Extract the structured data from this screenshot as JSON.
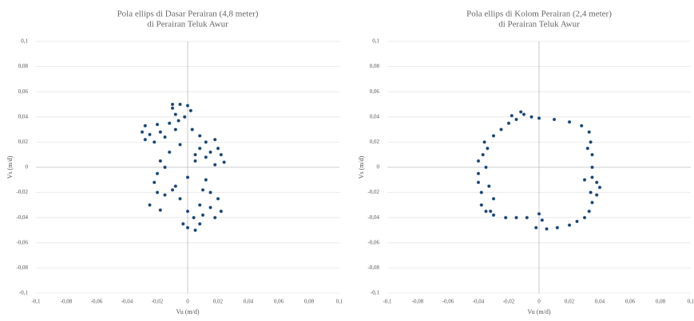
{
  "chart_data": [
    {
      "type": "scatter",
      "title": "Pola ellips di Dasar Perairan  (4,8 meter)",
      "subtitle": "di Perairan Teluk Awur",
      "x_label": "Vu (m/d)",
      "y_label": "Vs (m/d)",
      "color": "#1f3f66",
      "grid": true,
      "xlim": [
        -0.1,
        0.1
      ],
      "ylim": [
        -0.1,
        0.1
      ],
      "xticks": [
        {
          "value": -0.1,
          "label": "-0,1"
        },
        {
          "value": -0.08,
          "label": "-0,08"
        },
        {
          "value": -0.06,
          "label": "-0,06"
        },
        {
          "value": -0.04,
          "label": "-0,04"
        },
        {
          "value": -0.02,
          "label": "-0,02"
        },
        0,
        {
          "value": 0.02,
          "label": "0,02"
        },
        {
          "value": 0.04,
          "label": "0,04"
        },
        {
          "value": 0.06,
          "label": "0,06"
        },
        {
          "value": 0.08,
          "label": "0,08"
        },
        {
          "value": 0.1,
          "label": "0,1"
        }
      ],
      "yticks": [
        {
          "value": 0.1,
          "label": "0,1"
        },
        {
          "value": 0.08,
          "label": "0,08"
        },
        {
          "value": 0.06,
          "label": "0,06"
        },
        {
          "value": 0.04,
          "label": "0,04"
        },
        {
          "value": 0.02,
          "label": "0,02"
        },
        0,
        {
          "value": -0.02,
          "label": "-0,02"
        },
        {
          "value": -0.04,
          "label": "-0,04"
        },
        {
          "value": -0.06,
          "label": "-0,06"
        },
        {
          "value": -0.08,
          "label": "-0,08"
        },
        {
          "value": -0.1,
          "label": "-0,1"
        }
      ],
      "x": [
        -0.01,
        -0.005,
        0,
        0.002,
        -0.002,
        -0.008,
        -0.01,
        -0.006,
        -0.012,
        -0.02,
        -0.028,
        -0.03,
        -0.025,
        -0.018,
        -0.028,
        -0.022,
        -0.015,
        -0.008,
        0.003,
        0.008,
        0.012,
        0.018,
        0.02,
        0.015,
        0.022,
        0.024,
        0.018,
        0.012,
        0.008,
        0.005,
        -0.005,
        -0.012,
        -0.018,
        -0.02,
        -0.022,
        -0.02,
        -0.015,
        -0.01,
        -0.025,
        -0.018,
        -0.005,
        0,
        -0.003,
        0,
        0.005,
        0.004,
        0.008,
        0.01,
        0.015,
        0.02,
        0.022,
        0.018,
        0.015,
        0.01,
        0.008,
        0.005,
        0,
        -0.008,
        0.012,
        -0.015
      ],
      "values": [
        0.05,
        0.05,
        0.049,
        0.045,
        0.04,
        0.042,
        0.047,
        0.037,
        0.035,
        0.034,
        0.033,
        0.028,
        0.026,
        0.028,
        0.022,
        0.02,
        0.024,
        0.03,
        0.03,
        0.025,
        0.02,
        0.022,
        0.015,
        0.012,
        0.01,
        0.004,
        0.002,
        0.008,
        0.015,
        0.01,
        0.018,
        0.012,
        0.005,
        -0.005,
        -0.012,
        -0.02,
        -0.022,
        -0.018,
        -0.03,
        -0.034,
        -0.025,
        -0.035,
        -0.045,
        -0.048,
        -0.05,
        -0.04,
        -0.03,
        -0.018,
        -0.02,
        -0.025,
        -0.035,
        -0.04,
        -0.032,
        -0.038,
        -0.045,
        0.005,
        -0.008,
        -0.015,
        -0.01,
        0
      ]
    },
    {
      "type": "scatter",
      "title": "Pola ellips di Kolom Perairan (2,4 meter)",
      "subtitle": "di Perairan Teluk Awur",
      "x_label": "Vu (m/d)",
      "y_label": "Vs (m/d)",
      "color": "#1f3f66",
      "grid": true,
      "xlim": [
        -0.1,
        0.1
      ],
      "ylim": [
        -0.1,
        0.1
      ],
      "xticks": [
        {
          "value": -0.1,
          "label": "-0,1"
        },
        {
          "value": -0.08,
          "label": "-0,08"
        },
        {
          "value": -0.06,
          "label": "-0,06"
        },
        {
          "value": -0.04,
          "label": "-0,04"
        },
        {
          "value": -0.02,
          "label": "-0,02"
        },
        0,
        {
          "value": 0.02,
          "label": "0,02"
        },
        {
          "value": 0.04,
          "label": "0,04"
        },
        {
          "value": 0.06,
          "label": "0,06"
        },
        {
          "value": 0.08,
          "label": "0,08"
        },
        {
          "value": 0.1,
          "label": "0,1"
        }
      ],
      "yticks": [
        {
          "value": 0.1,
          "label": "0,1"
        },
        {
          "value": 0.08,
          "label": "0,08"
        },
        {
          "value": 0.06,
          "label": "0,06"
        },
        {
          "value": 0.04,
          "label": "0,04"
        },
        {
          "value": 0.02,
          "label": "0,02"
        },
        0,
        {
          "value": -0.02,
          "label": "-0,02"
        },
        {
          "value": -0.04,
          "label": "-0,04"
        },
        {
          "value": -0.06,
          "label": "-0,06"
        },
        {
          "value": -0.08,
          "label": "-0,08"
        },
        {
          "value": -0.1,
          "label": "-0,1"
        }
      ],
      "x": [
        -0.012,
        -0.018,
        -0.005,
        0,
        0.01,
        0.02,
        0.028,
        0.033,
        0.034,
        0.035,
        0.035,
        0.035,
        0.038,
        0.04,
        0.038,
        0.034,
        0.035,
        0.033,
        0.03,
        0.025,
        0.02,
        0.012,
        0.005,
        -0.002,
        0.002,
        0,
        -0.008,
        -0.015,
        -0.022,
        -0.03,
        -0.035,
        -0.038,
        -0.038,
        -0.033,
        -0.03,
        -0.032,
        -0.04,
        -0.04,
        -0.035,
        -0.04,
        -0.037,
        -0.034,
        -0.036,
        -0.03,
        -0.025,
        -0.02,
        -0.015,
        -0.01,
        0.03,
        0.032
      ],
      "values": [
        0.044,
        0.041,
        0.04,
        0.039,
        0.038,
        0.036,
        0.033,
        0.028,
        0.02,
        0.01,
        0,
        -0.008,
        -0.012,
        -0.016,
        -0.022,
        -0.02,
        -0.028,
        -0.035,
        -0.04,
        -0.043,
        -0.046,
        -0.048,
        -0.049,
        -0.048,
        -0.042,
        -0.037,
        -0.04,
        -0.04,
        -0.04,
        -0.038,
        -0.035,
        -0.03,
        -0.02,
        -0.015,
        -0.025,
        -0.035,
        -0.012,
        -0.005,
        0,
        0.005,
        0.01,
        0.015,
        0.02,
        0.025,
        0.03,
        0.035,
        0.038,
        0.042,
        -0.01,
        0.015
      ]
    }
  ]
}
